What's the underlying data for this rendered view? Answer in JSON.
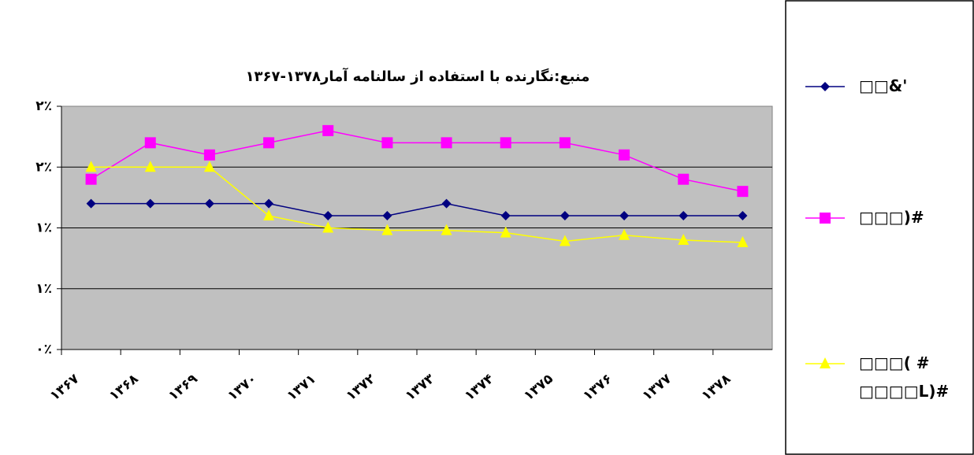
{
  "chart_data": {
    "type": "line",
    "title": "منبع:نگارنده با استفاده از سالنامه آمار۱۳۷۸-۱۳۶۷",
    "categories": [
      "۱۳۶۷",
      "۱۳۶۸",
      "۱۳۶۹",
      "۱۳۷۰",
      "۱۳۷۱",
      "۱۳۷۲",
      "۱۳۷۳",
      "۱۳۷۴",
      "۱۳۷۵",
      "۱۳۷۶",
      "۱۳۷۷",
      "۱۳۷۸"
    ],
    "series": [
      {
        "name": "□□&'",
        "color": "#000080",
        "marker": "diamond",
        "values": [
          1.2,
          1.2,
          1.2,
          1.2,
          1.1,
          1.1,
          1.2,
          1.1,
          1.1,
          1.1,
          1.1,
          1.1
        ]
      },
      {
        "name": "□□□)#",
        "color": "#ff00ff",
        "marker": "square",
        "values": [
          1.4,
          1.7,
          1.6,
          1.7,
          1.8,
          1.7,
          1.7,
          1.7,
          1.7,
          1.6,
          1.4,
          1.3
        ]
      },
      {
        "name": "□□□( #\n□□□□L)#",
        "color": "#ffff00",
        "marker": "triangle",
        "values": [
          1.5,
          1.5,
          1.5,
          1.1,
          1.0,
          0.98,
          0.98,
          0.96,
          0.89,
          0.94,
          0.9,
          0.88
        ]
      }
    ],
    "ylim": [
      0,
      2
    ],
    "yticks": [
      {
        "value": 0,
        "label": "۰٪"
      },
      {
        "value": 0.5,
        "label": "۱٪"
      },
      {
        "value": 1,
        "label": "۱٪"
      },
      {
        "value": 1.5,
        "label": "۲٪"
      },
      {
        "value": 2,
        "label": "۲٪"
      }
    ],
    "grid": true
  }
}
